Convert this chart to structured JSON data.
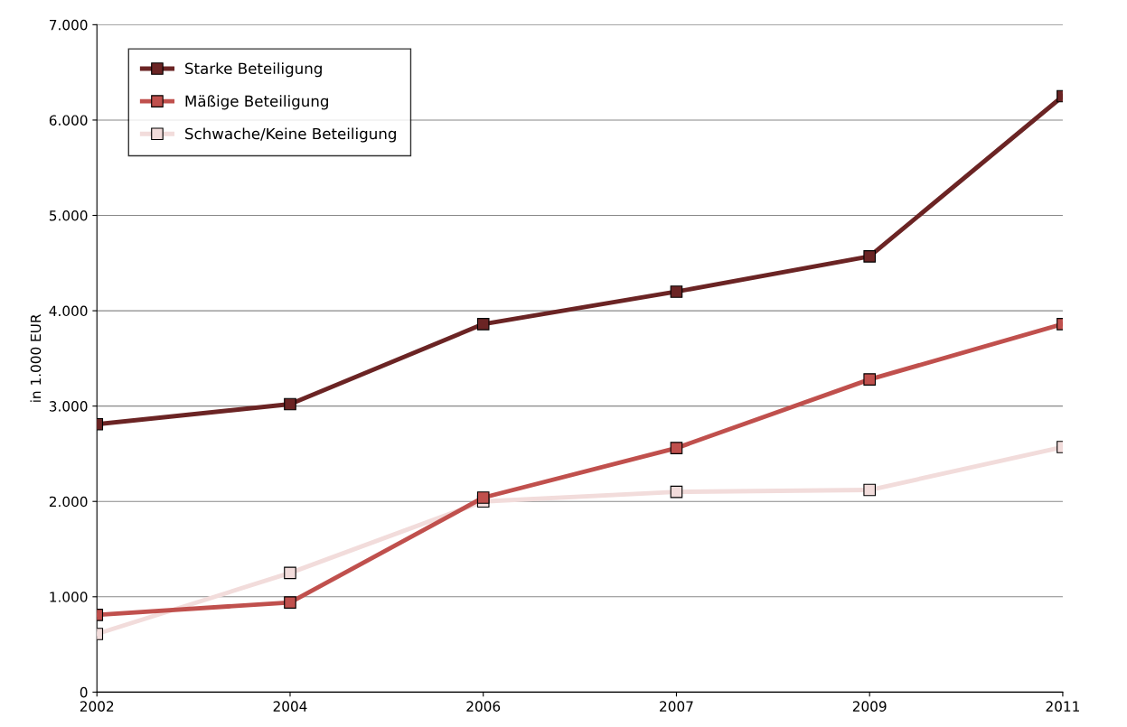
{
  "chart_data": {
    "type": "line",
    "ylabel": "in 1.000 EUR",
    "categories": [
      "2002",
      "2004",
      "2006",
      "2007",
      "2009",
      "2011"
    ],
    "series": [
      {
        "name": "Starke Beteiligung",
        "color": "#6b2424",
        "values": [
          2810,
          3020,
          3860,
          4200,
          4570,
          6250
        ]
      },
      {
        "name": "Mäßige Beteiligung",
        "color": "#c0504d",
        "values": [
          810,
          940,
          2040,
          2560,
          3280,
          3860
        ]
      },
      {
        "name": "Schwache/Keine Beteiligung",
        "color": "#f2dcdb",
        "values": [
          610,
          1250,
          2000,
          2100,
          2120,
          2570
        ]
      }
    ],
    "ylim": [
      0,
      7000
    ],
    "yticks": [
      {
        "value": 0,
        "label": "0"
      },
      {
        "value": 1000,
        "label": "1.000"
      },
      {
        "value": 2000,
        "label": "2.000"
      },
      {
        "value": 3000,
        "label": "3.000"
      },
      {
        "value": 4000,
        "label": "4.000"
      },
      {
        "value": 5000,
        "label": "5.000"
      },
      {
        "value": 6000,
        "label": "6.000"
      },
      {
        "value": 7000,
        "label": "7.000"
      }
    ],
    "grid": "y",
    "legend": "top left",
    "marker": "square",
    "line_style": "solid"
  }
}
